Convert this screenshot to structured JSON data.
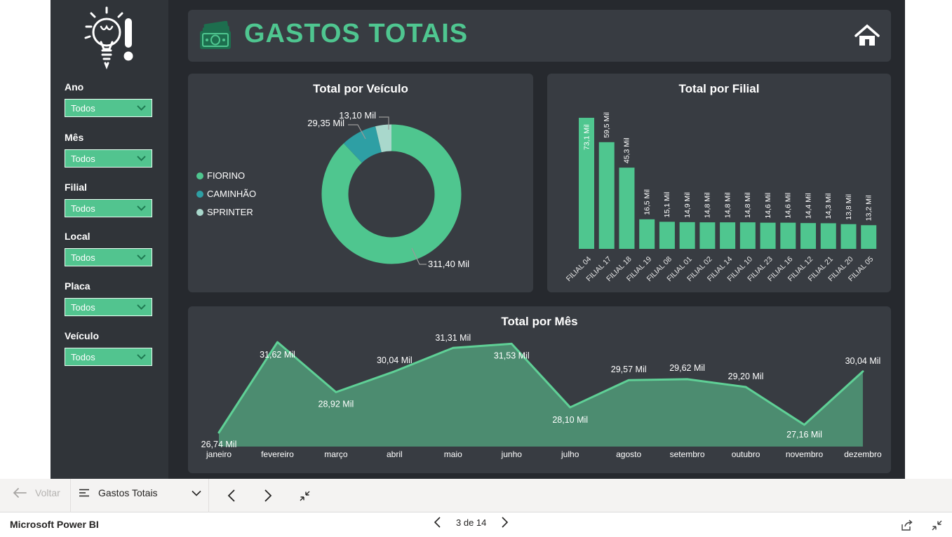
{
  "header": {
    "title": "GASTOS TOTAIS"
  },
  "sidebar": {
    "filters": [
      {
        "label": "Ano",
        "value": "Todos"
      },
      {
        "label": "Mês",
        "value": "Todos"
      },
      {
        "label": "Filial",
        "value": "Todos"
      },
      {
        "label": "Local",
        "value": "Todos"
      },
      {
        "label": "Placa",
        "value": "Todos"
      },
      {
        "label": "Veículo",
        "value": "Todos"
      }
    ]
  },
  "colors": {
    "accent_green": "#4fc68f",
    "teal": "#2e9fa4",
    "pale_green": "#a9d8cc",
    "title_green": "#4fc690",
    "icon_green": "#1d6e4e",
    "area_fill": "#4c8c70",
    "line_green": "#5fd096",
    "panel_bg": "#383c42",
    "canvas_bg": "#26292e",
    "sidebar_bg": "#303439"
  },
  "chart_data": [
    {
      "type": "pie",
      "donut": true,
      "title": "Total por Veículo",
      "labels": [
        "FIORINO",
        "CAMINHÃO",
        "SPRINTER"
      ],
      "values": [
        311.4,
        29.35,
        13.1
      ],
      "value_labels": [
        "311,40 Mil",
        "29,35 Mil",
        "13,10 Mil"
      ],
      "colors": [
        "#4fc68f",
        "#2e9fa4",
        "#a9d8cc"
      ],
      "legend_position": "left"
    },
    {
      "type": "bar",
      "title": "Total por Filial",
      "categories": [
        "FILIAL 04",
        "FILIAL 17",
        "FILIAL 18",
        "FILIAL 19",
        "FILIAL 08",
        "FILIAL 01",
        "FILIAL 02",
        "FILIAL 14",
        "FILIAL 10",
        "FILIAL 23",
        "FILIAL 16",
        "FILIAL 12",
        "FILIAL 21",
        "FILIAL 20",
        "FILIAL 05"
      ],
      "values": [
        73.1,
        59.5,
        45.3,
        16.5,
        15.1,
        14.9,
        14.8,
        14.8,
        14.8,
        14.6,
        14.6,
        14.4,
        14.3,
        13.8,
        13.2
      ],
      "value_labels": [
        "73,1 Mil",
        "59,5 Mil",
        "45,3 Mil",
        "16,5 Mil",
        "15,1 Mil",
        "14,9 Mil",
        "14,8 Mil",
        "14,8 Mil",
        "14,8 Mil",
        "14,6 Mil",
        "14,6 Mil",
        "14,4 Mil",
        "14,3 Mil",
        "13,8 Mil",
        "13,2 Mil"
      ],
      "ylim": [
        0,
        80
      ],
      "grid": false,
      "bar_color": "#4fc68f"
    },
    {
      "type": "area",
      "title": "Total por Mês",
      "categories": [
        "janeiro",
        "fevereiro",
        "março",
        "abril",
        "maio",
        "junho",
        "julho",
        "agosto",
        "setembro",
        "outubro",
        "novembro",
        "dezembro"
      ],
      "values": [
        26.74,
        31.62,
        28.92,
        30.04,
        31.31,
        31.53,
        28.1,
        29.57,
        29.62,
        29.2,
        27.16,
        30.04
      ],
      "value_labels": [
        "26,74 Mil",
        "31,62 Mil",
        "28,92 Mil",
        "30,04 Mil",
        "31,31 Mil",
        "31,53 Mil",
        "28,10 Mil",
        "29,57 Mil",
        "29,62 Mil",
        "29,20 Mil",
        "27,16 Mil",
        "30,04 Mil"
      ],
      "label_dy": [
        14,
        15,
        14,
        -12,
        -10,
        14,
        15,
        -11,
        -12,
        -11,
        11,
        -11
      ],
      "ylim": [
        26,
        32.5
      ],
      "grid": false
    }
  ],
  "navbar": {
    "back_label": "Voltar",
    "page_selector_label": "Gastos Totais"
  },
  "statusbar": {
    "brand": "Microsoft Power BI",
    "page_indicator": "3 de 14"
  }
}
